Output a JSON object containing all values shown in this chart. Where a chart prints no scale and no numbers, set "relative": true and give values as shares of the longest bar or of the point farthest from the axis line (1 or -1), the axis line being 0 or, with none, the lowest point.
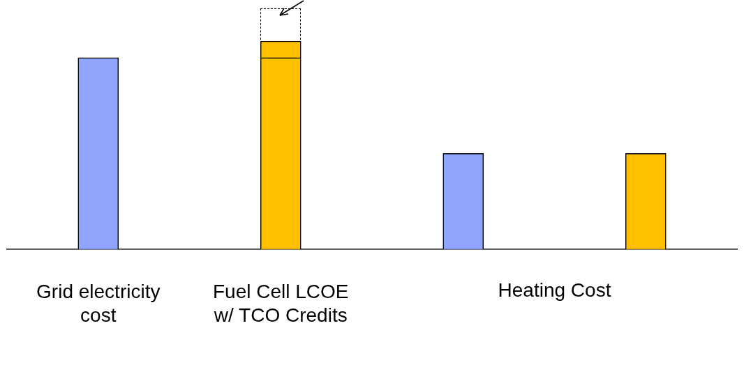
{
  "chart_data": {
    "type": "bar",
    "relative": true,
    "stacked": true,
    "categories": [
      "Grid electricity cost",
      "Fuel Cell LCOE w/ TCO Credits",
      null,
      null
    ],
    "series": [
      {
        "color": "#8fa5fe",
        "values": [
          0.92,
          null,
          0.46,
          null
        ]
      },
      {
        "color": "#ffc000",
        "values": [
          null,
          0.92,
          null,
          0.46
        ]
      },
      {
        "color": "#ffc000",
        "values": [
          null,
          0.08,
          null,
          null
        ]
      }
    ],
    "annotations": [
      "Heating Cost"
    ],
    "grid": false,
    "legend": false
  }
}
